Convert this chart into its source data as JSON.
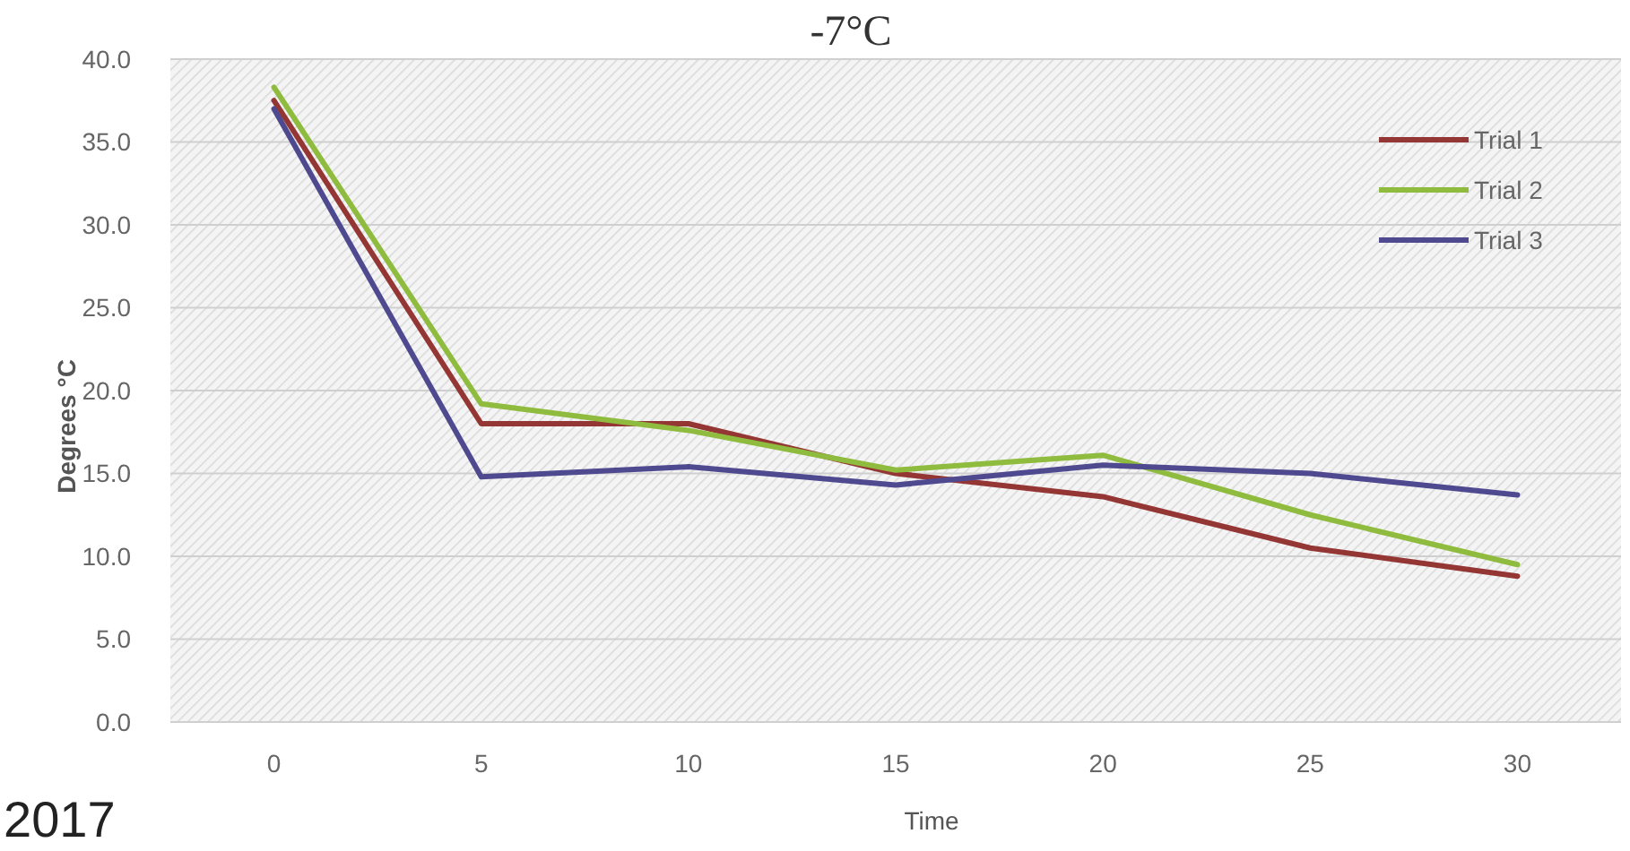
{
  "chart_data": {
    "type": "line",
    "title": "-7°C",
    "xlabel": "Time",
    "ylabel": "Degrees °C",
    "categories": [
      "0",
      "5",
      "10",
      "15",
      "20",
      "25",
      "30"
    ],
    "series": [
      {
        "name": "Trial 1",
        "color": "#943634",
        "values": [
          37.5,
          18.0,
          18.0,
          15.0,
          13.6,
          10.5,
          8.8
        ]
      },
      {
        "name": "Trial 2",
        "color": "#8fbc3f",
        "values": [
          38.3,
          19.2,
          17.6,
          15.2,
          16.1,
          12.5,
          9.5
        ]
      },
      {
        "name": "Trial 3",
        "color": "#4f4a8f",
        "values": [
          37.0,
          14.8,
          15.4,
          14.3,
          15.5,
          15.0,
          13.7
        ]
      }
    ],
    "ylim": [
      0,
      40
    ],
    "yticks": [
      {
        "value": 0,
        "label": "0.0"
      },
      {
        "value": 5,
        "label": "5.0"
      },
      {
        "value": 10,
        "label": "10.0"
      },
      {
        "value": 15,
        "label": "15.0"
      },
      {
        "value": 20,
        "label": "20.0"
      },
      {
        "value": 25,
        "label": "25.0"
      },
      {
        "value": 30,
        "label": "30.0"
      },
      {
        "value": 35,
        "label": "35.0"
      },
      {
        "value": 40,
        "label": "40.0"
      }
    ],
    "grid": "y",
    "legend": "top right",
    "marker": "none",
    "line_style": "solid",
    "annotations": [
      "2017"
    ]
  }
}
